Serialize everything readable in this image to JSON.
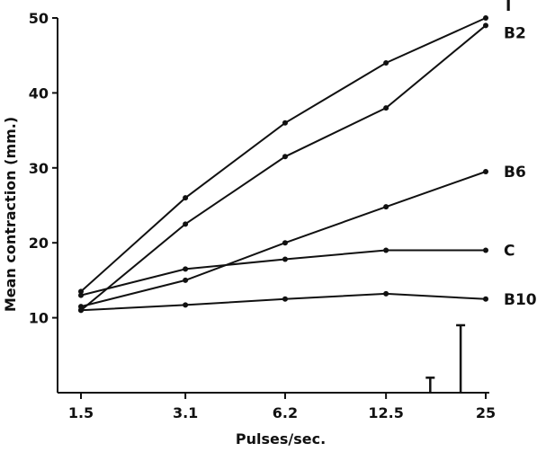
{
  "chart_data": {
    "type": "line",
    "title": "",
    "xlabel": "Pulses/sec.",
    "ylabel": "Mean contraction (mm.)",
    "x_scale": "log",
    "x": [
      1.5,
      3.1,
      6.2,
      12.5,
      25
    ],
    "x_tick_labels": [
      "1.5",
      "3.1",
      "6.2",
      "12.5",
      "25"
    ],
    "ylim": [
      0,
      50
    ],
    "y_ticks": [
      10,
      20,
      30,
      40,
      50
    ],
    "series": [
      {
        "name": "I",
        "values": [
          13.5,
          26.0,
          36.0,
          44.0,
          50.0
        ]
      },
      {
        "name": "B2",
        "values": [
          11.0,
          22.5,
          31.5,
          38.0,
          49.0
        ]
      },
      {
        "name": "B6",
        "values": [
          11.5,
          15.0,
          20.0,
          24.8,
          29.5
        ]
      },
      {
        "name": "C",
        "values": [
          13.0,
          16.5,
          17.8,
          19.0,
          19.0
        ]
      },
      {
        "name": "B10",
        "values": [
          11.0,
          11.7,
          12.5,
          13.2,
          12.5
        ]
      }
    ],
    "error_bars": [
      {
        "x": 17.0,
        "low": 0.0,
        "high": 2.0
      },
      {
        "x": 21.0,
        "low": 0.0,
        "high": 9.0
      }
    ],
    "grid": false,
    "legend": "labels at right end of each line"
  }
}
